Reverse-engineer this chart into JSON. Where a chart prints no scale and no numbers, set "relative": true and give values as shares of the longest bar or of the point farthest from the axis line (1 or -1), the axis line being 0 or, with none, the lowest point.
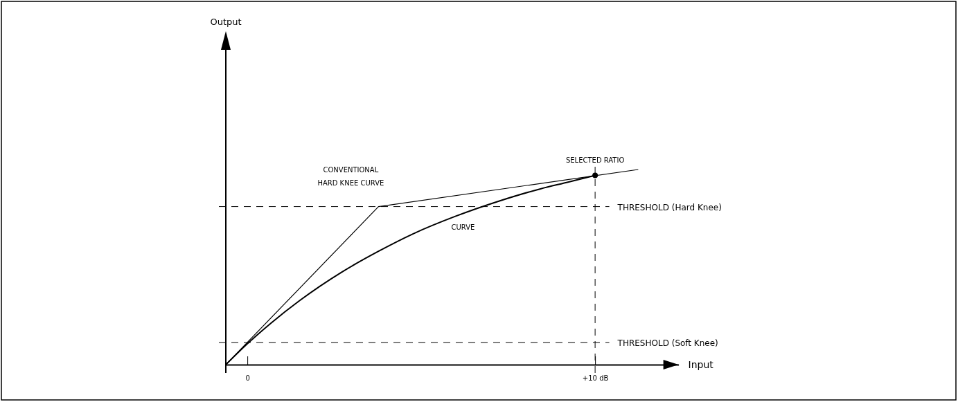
{
  "chart_data": {
    "type": "line",
    "relative": true,
    "xlabel": "Input",
    "xlim": [
      -0.62,
      12.4
    ],
    "xticks": [
      0,
      {
        "value": 10,
        "label": "+10 dB"
      }
    ],
    "marker": "none",
    "line_style": "solid",
    "series": [
      {
        "name": "CONVENTIONAL HARD KNEE CURVE",
        "color": "#000000",
        "x": [
          -0.62,
          3.77,
          11.24
        ],
        "values": [
          0,
          0.81,
          1
        ]
      },
      {
        "name": "CURVE",
        "color": "#000000",
        "x": [
          -0.62,
          0,
          0.68,
          1.5,
          2.72,
          3.77,
          4.76,
          5.98,
          7.2,
          8.43,
          9.24,
          10
        ],
        "values": [
          0,
          0.107,
          0.213,
          0.328,
          0.475,
          0.581,
          0.67,
          0.76,
          0.836,
          0.901,
          0.936,
          0.97
        ]
      },
      {
        "type": "scatter",
        "marker": "circle",
        "color": "#000000",
        "x": [
          10
        ],
        "values": [
          0.97
        ]
      }
    ],
    "ref_lines": [
      {
        "axis": "y",
        "value": 0.81,
        "label": "THRESHOLD (Hard Knee)",
        "line_style": "dashed"
      },
      {
        "axis": "y",
        "value": 0.113,
        "label": "THRESHOLD (Soft Knee)",
        "line_style": "dashed"
      },
      {
        "axis": "x",
        "value": 10,
        "line_style": "dashed"
      }
    ],
    "annotations": [
      "Output",
      {
        "text": "SELECTED RATIO",
        "x": 10,
        "y": 0.97
      }
    ]
  }
}
